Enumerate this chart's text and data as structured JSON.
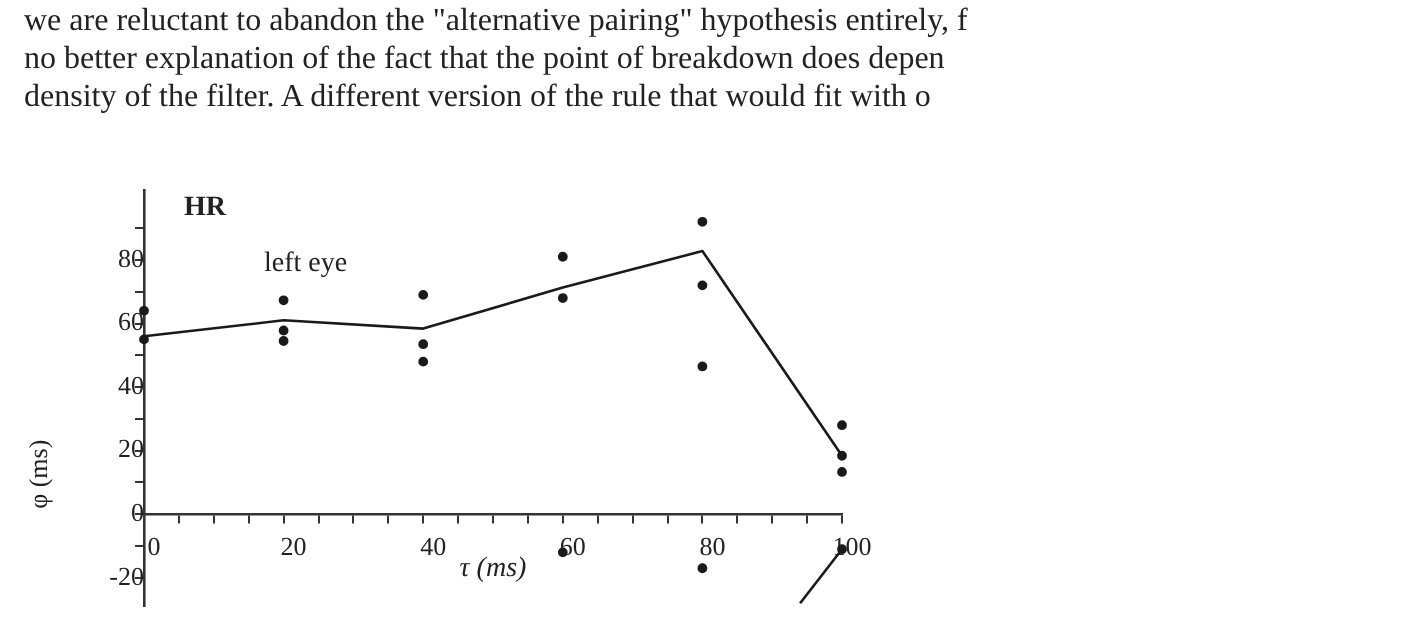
{
  "chart_data": {
    "type": "scatter",
    "title": "HR",
    "xlabel": "τ (ms)",
    "ylabel": "φ (ms)",
    "annotations": [
      "we are reluctant to abandon the \"alternative pairing\" hypothesis entirely, f",
      "no better explanation of the fact that the point of breakdown does depen",
      "density of the filter.  A different version of the rule that would fit with o",
      "left eye"
    ],
    "series": [
      {
        "color": "#1a1a1a",
        "x": [
          0,
          0,
          20,
          20,
          20,
          40,
          40,
          40,
          60,
          60,
          80,
          80,
          80,
          100,
          100,
          100,
          60,
          80,
          100
        ],
        "values": [
          64,
          55,
          67.3,
          57.8,
          54.5,
          69,
          53.5,
          48,
          81,
          68,
          92,
          72,
          46.5,
          28,
          18.4,
          13.3,
          -12,
          -17,
          -11
        ]
      },
      {
        "type": "line",
        "color": "#1a1a1a",
        "marker": "none",
        "x": [
          0,
          20,
          40,
          60,
          80,
          100
        ],
        "values": [
          56,
          61,
          58.4,
          71.3,
          82.8,
          18.4
        ]
      },
      {
        "type": "line",
        "color": "#1a1a1a",
        "marker": "none",
        "x": [
          100,
          94
        ],
        "values": [
          -11,
          -28
        ]
      }
    ],
    "xlim": [
      0,
      100
    ],
    "xticks": [
      0,
      {
        "value": 5,
        "label": null
      },
      {
        "value": 10,
        "label": null
      },
      {
        "value": 15,
        "label": null
      },
      20,
      {
        "value": 25,
        "label": null
      },
      {
        "value": 30,
        "label": null
      },
      {
        "value": 35,
        "label": null
      },
      40,
      {
        "value": 45,
        "label": null
      },
      {
        "value": 50,
        "label": null
      },
      {
        "value": 55,
        "label": null
      },
      60,
      {
        "value": 65,
        "label": null
      },
      {
        "value": 70,
        "label": null
      },
      {
        "value": 75,
        "label": null
      },
      80,
      {
        "value": 85,
        "label": null
      },
      {
        "value": 90,
        "label": null
      },
      {
        "value": 95,
        "label": null
      },
      100
    ],
    "ylim": [
      -29,
      102
    ],
    "yticks": [
      -20,
      {
        "value": -10,
        "label": null
      },
      0,
      {
        "value": 10,
        "label": null
      },
      20,
      {
        "value": 30,
        "label": null
      },
      40,
      {
        "value": 50,
        "label": null
      },
      60,
      {
        "value": 70,
        "label": null
      },
      80,
      {
        "value": 90,
        "label": null
      }
    ],
    "marker": "circle",
    "grid": false,
    "legend": false
  }
}
